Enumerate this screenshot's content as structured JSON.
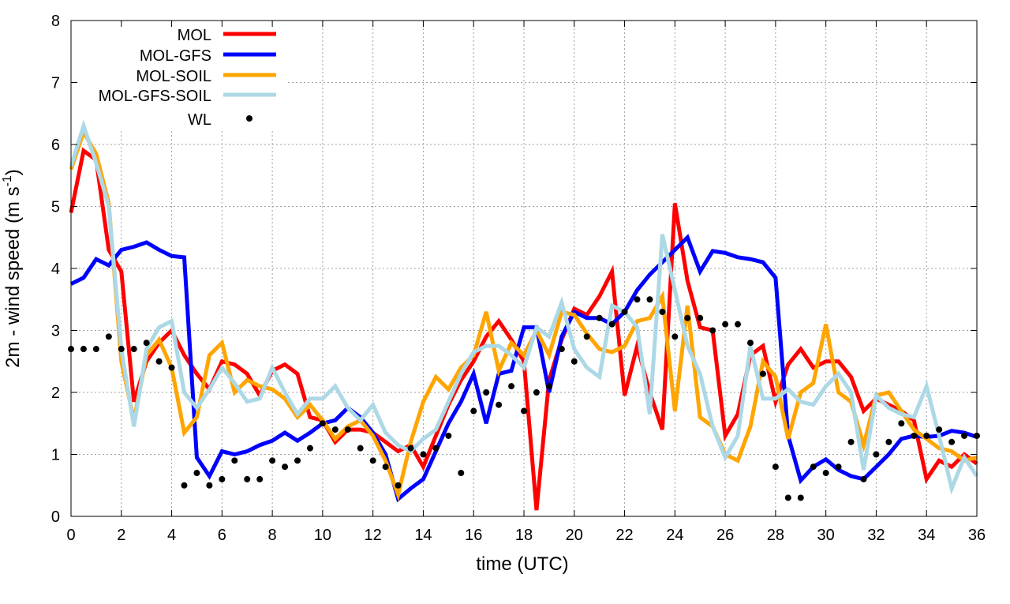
{
  "chart_data": {
    "type": "line",
    "title": "",
    "xlabel": "time (UTC)",
    "ylabel": {
      "main": "2m - wind speed  (m s",
      "sup": "-1",
      "end": ")"
    },
    "xlim": [
      0,
      36
    ],
    "ylim": [
      0,
      8
    ],
    "xticks": [
      0,
      2,
      4,
      6,
      8,
      10,
      12,
      14,
      16,
      18,
      20,
      22,
      24,
      26,
      28,
      30,
      32,
      34,
      36
    ],
    "yticks": [
      0,
      1,
      2,
      3,
      4,
      5,
      6,
      7,
      8
    ],
    "grid": true,
    "legend_position": "top-left",
    "x_step": 0.5,
    "series": [
      {
        "name": "MOL",
        "color": "#ff0000",
        "style": "line",
        "values": [
          4.9,
          5.9,
          5.75,
          4.3,
          3.95,
          1.85,
          2.5,
          2.8,
          3.0,
          2.6,
          2.3,
          2.05,
          2.5,
          2.45,
          2.3,
          1.95,
          2.35,
          2.45,
          2.3,
          1.6,
          1.55,
          1.2,
          1.4,
          1.4,
          1.35,
          1.2,
          1.05,
          1.15,
          0.8,
          1.3,
          1.8,
          2.2,
          2.5,
          2.9,
          3.15,
          2.85,
          2.5,
          0.1,
          2.2,
          2.85,
          3.35,
          3.25,
          3.55,
          3.95,
          1.95,
          2.75,
          2.0,
          1.4,
          5.05,
          3.8,
          3.05,
          3.0,
          1.3,
          1.65,
          2.6,
          2.75,
          1.85,
          2.45,
          2.7,
          2.4,
          2.5,
          2.5,
          2.25,
          1.7,
          1.9,
          1.8,
          1.7,
          1.55,
          0.6,
          0.9,
          0.8,
          1.0,
          0.85
        ]
      },
      {
        "name": "MOL-GFS",
        "color": "#0000ff",
        "style": "line",
        "values": [
          3.75,
          3.85,
          4.15,
          4.05,
          4.3,
          4.35,
          4.42,
          4.3,
          4.2,
          4.18,
          0.95,
          0.65,
          1.05,
          1.0,
          1.05,
          1.15,
          1.22,
          1.35,
          1.22,
          1.35,
          1.5,
          1.55,
          1.75,
          1.6,
          1.35,
          1.0,
          0.28,
          0.45,
          0.6,
          1.05,
          1.5,
          1.85,
          2.3,
          1.5,
          2.3,
          2.35,
          3.05,
          3.05,
          2.0,
          2.9,
          3.3,
          3.2,
          3.2,
          3.1,
          3.3,
          3.65,
          3.9,
          4.1,
          4.3,
          4.5,
          3.95,
          4.28,
          4.25,
          4.18,
          4.15,
          4.1,
          3.85,
          1.3,
          0.58,
          0.8,
          0.92,
          0.75,
          0.65,
          0.6,
          0.8,
          1.0,
          1.25,
          1.3,
          1.28,
          1.3,
          1.38,
          1.35,
          1.28
        ]
      },
      {
        "name": "MOL-SOIL",
        "color": "#ffa500",
        "style": "line",
        "values": [
          5.6,
          6.2,
          5.85,
          5.05,
          2.5,
          1.55,
          2.6,
          2.85,
          2.4,
          1.35,
          1.6,
          2.6,
          2.8,
          2.0,
          2.2,
          2.1,
          2.05,
          1.9,
          1.6,
          1.8,
          1.55,
          1.25,
          1.45,
          1.55,
          1.3,
          0.9,
          0.35,
          1.2,
          1.85,
          2.25,
          2.05,
          2.4,
          2.6,
          3.3,
          2.35,
          2.8,
          2.6,
          3.0,
          2.6,
          3.3,
          3.25,
          2.95,
          2.7,
          2.65,
          2.75,
          3.15,
          3.2,
          3.55,
          1.7,
          3.4,
          1.6,
          1.45,
          1.0,
          0.9,
          1.45,
          2.5,
          2.25,
          1.25,
          2.0,
          2.15,
          3.1,
          2.0,
          1.85,
          1.15,
          1.95,
          2.0,
          1.7,
          1.4,
          1.25,
          1.1,
          1.05,
          0.9,
          0.95
        ]
      },
      {
        "name": "MOL-GFS-SOIL",
        "color": "#add8e6",
        "style": "line",
        "values": [
          5.65,
          6.3,
          5.7,
          5.0,
          2.7,
          1.45,
          2.7,
          3.05,
          3.15,
          2.0,
          1.75,
          2.05,
          2.4,
          2.15,
          1.85,
          1.9,
          2.4,
          2.0,
          1.65,
          1.9,
          1.9,
          2.1,
          1.75,
          1.55,
          1.8,
          1.35,
          1.15,
          1.05,
          1.25,
          1.4,
          1.85,
          2.3,
          2.65,
          2.75,
          2.75,
          2.6,
          2.4,
          3.05,
          2.9,
          3.45,
          2.7,
          2.4,
          2.25,
          3.4,
          3.3,
          3.05,
          1.65,
          4.55,
          3.65,
          2.75,
          2.3,
          1.45,
          0.95,
          1.3,
          2.75,
          1.9,
          1.9,
          2.05,
          1.85,
          1.8,
          2.1,
          2.3,
          2.0,
          0.75,
          1.95,
          1.75,
          1.65,
          1.6,
          2.1,
          1.3,
          0.45,
          0.95,
          0.65
        ]
      },
      {
        "name": "WL",
        "color": "#000000",
        "style": "points",
        "values": [
          2.7,
          2.7,
          2.7,
          2.9,
          2.7,
          2.7,
          2.8,
          2.5,
          2.4,
          0.5,
          0.7,
          0.5,
          0.6,
          0.9,
          0.6,
          0.6,
          0.9,
          0.8,
          0.9,
          1.1,
          1.5,
          1.4,
          1.4,
          1.1,
          0.9,
          0.8,
          0.5,
          1.1,
          1.0,
          1.1,
          1.3,
          0.7,
          1.7,
          2.0,
          1.8,
          2.1,
          1.7,
          2.0,
          2.1,
          2.7,
          2.5,
          2.9,
          3.2,
          3.1,
          3.3,
          3.5,
          3.5,
          3.3,
          2.9,
          3.2,
          3.2,
          3.0,
          3.1,
          3.1,
          2.8,
          2.3,
          0.8,
          0.3,
          0.3,
          0.8,
          0.7,
          0.8,
          1.2,
          0.6,
          1.0,
          1.2,
          1.5,
          1.3,
          1.3,
          1.4,
          1.2,
          1.3,
          1.3
        ]
      }
    ]
  }
}
